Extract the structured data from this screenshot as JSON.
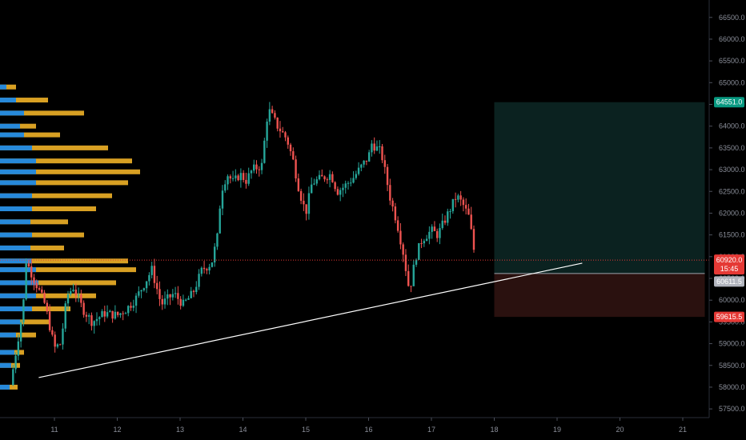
{
  "chart_data": {
    "type": "candlestick",
    "title": "",
    "x_axis": {
      "ticks": [
        "11",
        "12",
        "13",
        "14",
        "15",
        "16",
        "17",
        "18",
        "19",
        "20",
        "21"
      ]
    },
    "y_axis": {
      "ticks": [
        "57500.0",
        "58000.0",
        "58500.0",
        "59000.0",
        "59500.0",
        "60000.0",
        "60500.0",
        "61000.0",
        "61500.0",
        "62000.0",
        "62500.0",
        "63000.0",
        "63500.0",
        "64000.0",
        "64500.0",
        "65000.0",
        "65500.0",
        "66000.0",
        "66500.0"
      ],
      "range": [
        57300,
        66900
      ]
    },
    "price_labels": {
      "take_profit": "64551.0",
      "current": "60920.0",
      "countdown": "15:45",
      "entry": "60611.5",
      "stop_loss": "59615.5"
    },
    "position": {
      "entry": 60611.5,
      "take_profit": 64551.0,
      "stop_loss": 59615.5,
      "from_day": 18.0,
      "to_day": 21.35
    },
    "trendline": {
      "start": {
        "day": 10.75,
        "price": 58220
      },
      "end": {
        "day": 19.4,
        "price": 60850
      }
    },
    "current_price": 60920.0,
    "close_path": [
      [
        10.3,
        58050
      ],
      [
        10.5,
        59800
      ],
      [
        10.55,
        60900
      ],
      [
        10.7,
        60400
      ],
      [
        10.85,
        59900
      ],
      [
        11.0,
        58900
      ],
      [
        11.1,
        59000
      ],
      [
        11.2,
        60100
      ],
      [
        11.3,
        60300
      ],
      [
        11.45,
        59800
      ],
      [
        11.6,
        59500
      ],
      [
        11.8,
        59700
      ],
      [
        12.0,
        59650
      ],
      [
        12.15,
        59800
      ],
      [
        12.3,
        60050
      ],
      [
        12.4,
        60300
      ],
      [
        12.55,
        60700
      ],
      [
        12.7,
        59900
      ],
      [
        12.9,
        60150
      ],
      [
        13.05,
        59900
      ],
      [
        13.2,
        60150
      ],
      [
        13.35,
        60700
      ],
      [
        13.5,
        60850
      ],
      [
        13.6,
        61500
      ],
      [
        13.65,
        62500
      ],
      [
        13.75,
        62900
      ],
      [
        13.85,
        62700
      ],
      [
        13.95,
        62900
      ],
      [
        14.05,
        62750
      ],
      [
        14.15,
        63000
      ],
      [
        14.3,
        63100
      ],
      [
        14.4,
        64400
      ],
      [
        14.55,
        64000
      ],
      [
        14.7,
        63700
      ],
      [
        14.8,
        63200
      ],
      [
        14.9,
        62500
      ],
      [
        15.0,
        62000
      ],
      [
        15.1,
        62700
      ],
      [
        15.25,
        62800
      ],
      [
        15.4,
        62900
      ],
      [
        15.5,
        62500
      ],
      [
        15.6,
        62600
      ],
      [
        15.75,
        62800
      ],
      [
        15.85,
        63000
      ],
      [
        16.0,
        63300
      ],
      [
        16.05,
        63600
      ],
      [
        16.2,
        63400
      ],
      [
        16.35,
        62300
      ],
      [
        16.45,
        61800
      ],
      [
        16.55,
        61100
      ],
      [
        16.65,
        60200
      ],
      [
        16.75,
        61000
      ],
      [
        16.85,
        61400
      ],
      [
        17.0,
        61600
      ],
      [
        17.1,
        61500
      ],
      [
        17.2,
        61800
      ],
      [
        17.3,
        62100
      ],
      [
        17.4,
        62400
      ],
      [
        17.5,
        62200
      ],
      [
        17.6,
        61900
      ],
      [
        17.7,
        60920
      ]
    ],
    "volume_profile": [
      {
        "price": 58000,
        "upper": 22,
        "lower": 12
      },
      {
        "price": 58500,
        "upper": 25,
        "lower": 14
      },
      {
        "price": 58800,
        "upper": 30,
        "lower": 18
      },
      {
        "price": 59200,
        "upper": 45,
        "lower": 20
      },
      {
        "price": 59500,
        "upper": 62,
        "lower": 25
      },
      {
        "price": 59800,
        "upper": 88,
        "lower": 40
      },
      {
        "price": 60100,
        "upper": 120,
        "lower": 45
      },
      {
        "price": 60400,
        "upper": 145,
        "lower": 48
      },
      {
        "price": 60700,
        "upper": 170,
        "lower": 45
      },
      {
        "price": 60900,
        "upper": 160,
        "lower": 40
      },
      {
        "price": 61200,
        "upper": 80,
        "lower": 38
      },
      {
        "price": 61500,
        "upper": 105,
        "lower": 40
      },
      {
        "price": 61800,
        "upper": 85,
        "lower": 38
      },
      {
        "price": 62100,
        "upper": 120,
        "lower": 40
      },
      {
        "price": 62400,
        "upper": 140,
        "lower": 40
      },
      {
        "price": 62700,
        "upper": 160,
        "lower": 45
      },
      {
        "price": 62950,
        "upper": 175,
        "lower": 45
      },
      {
        "price": 63200,
        "upper": 165,
        "lower": 45
      },
      {
        "price": 63500,
        "upper": 135,
        "lower": 40
      },
      {
        "price": 63800,
        "upper": 75,
        "lower": 30
      },
      {
        "price": 64000,
        "upper": 45,
        "lower": 25
      },
      {
        "price": 64300,
        "upper": 105,
        "lower": 30
      },
      {
        "price": 64600,
        "upper": 60,
        "lower": 20
      },
      {
        "price": 64900,
        "upper": 20,
        "lower": 8
      }
    ]
  },
  "colors": {
    "background": "#000000",
    "up": "#26a69a",
    "down": "#ef5350",
    "profit_zone": "#0b2220",
    "loss_zone": "#2a110f",
    "take_profit_badge": "#089981",
    "current_badge": "#e53935",
    "entry_badge": "#b2b5be",
    "stop_badge": "#e53935",
    "profile_upper": "#f0b127",
    "profile_lower": "#1e88e5",
    "trendline": "#ffffff"
  }
}
